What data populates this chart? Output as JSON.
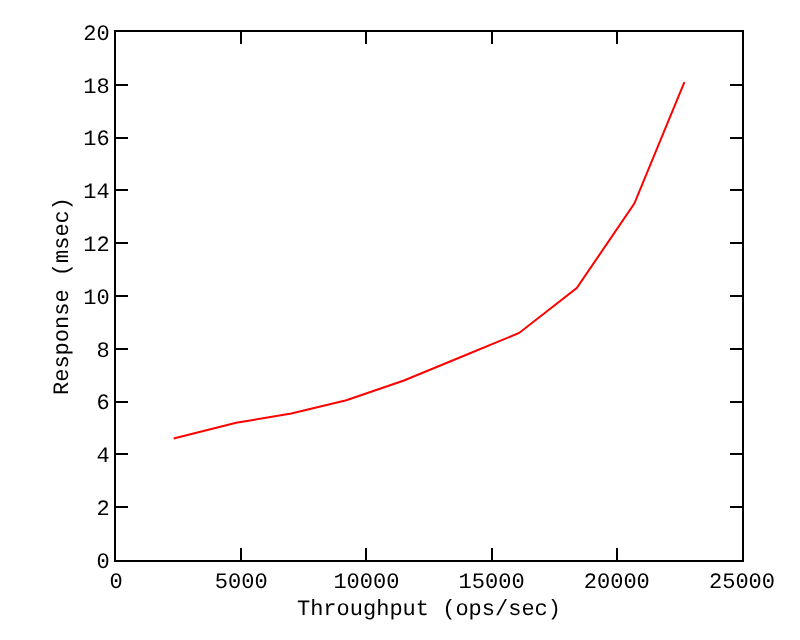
{
  "chart_data": {
    "type": "line",
    "xlabel": "Throughput (ops/sec)",
    "ylabel": "Response (msec)",
    "x": [
      2300,
      4800,
      7000,
      9200,
      11500,
      13800,
      16100,
      18400,
      20700,
      22700
    ],
    "series": [
      {
        "color": "#ff0000",
        "values": [
          4.6,
          5.2,
          5.55,
          6.05,
          6.8,
          7.7,
          8.6,
          10.3,
          13.5,
          18.1
        ]
      }
    ],
    "xlim": [
      0,
      25000
    ],
    "xticks": [
      0,
      5000,
      10000,
      15000,
      20000,
      25000
    ],
    "ylim": [
      0,
      20
    ],
    "yticks": [
      0,
      2,
      4,
      6,
      8,
      10,
      12,
      14,
      16,
      18,
      20
    ],
    "legend": false,
    "marker": "none",
    "line_style": "solid"
  }
}
